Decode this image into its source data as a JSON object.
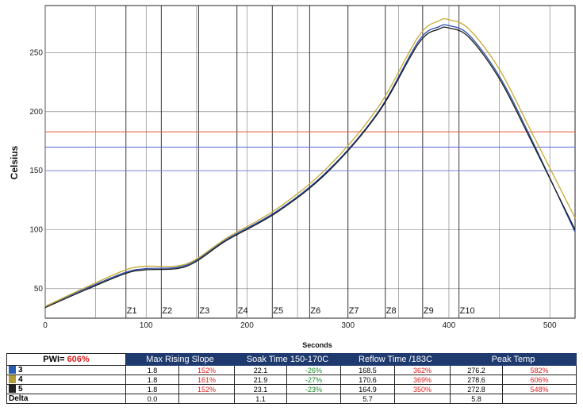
{
  "chart_data": {
    "type": "line",
    "xlabel": "Seconds",
    "ylabel": "Celsius",
    "xlim": [
      0,
      525
    ],
    "ylim": [
      25,
      290
    ],
    "xticks": [
      0,
      100,
      200,
      300,
      400,
      500
    ],
    "yticks": [
      50,
      100,
      150,
      200,
      250
    ],
    "grid": true,
    "zones": [
      {
        "label": "Z1",
        "x": 80
      },
      {
        "label": "Z2",
        "x": 115
      },
      {
        "label": "Z3",
        "x": 152
      },
      {
        "label": "Z4",
        "x": 190
      },
      {
        "label": "Z5",
        "x": 225
      },
      {
        "label": "Z6",
        "x": 262
      },
      {
        "label": "Z7",
        "x": 300
      },
      {
        "label": "Z8",
        "x": 337
      },
      {
        "label": "Z9",
        "x": 374
      },
      {
        "label": "Z10",
        "x": 410
      }
    ],
    "reference_lines": [
      {
        "y": 183,
        "color": "#e8553a"
      },
      {
        "y": 170,
        "color": "#5a66d6"
      },
      {
        "y": 150,
        "color": "#7a86e0"
      }
    ],
    "series": [
      {
        "name": "3",
        "color": "#2a4fb0",
        "x": [
          0,
          40,
          80,
          100,
          140,
          180,
          230,
          280,
          330,
          370,
          390,
          400,
          420,
          450,
          480,
          525
        ],
        "y": [
          35,
          50,
          64,
          67,
          70,
          92,
          116,
          150,
          200,
          260,
          272,
          273,
          265,
          230,
          180,
          98
        ]
      },
      {
        "name": "4",
        "color": "#c8a830",
        "x": [
          0,
          40,
          80,
          100,
          140,
          180,
          230,
          280,
          330,
          370,
          390,
          400,
          420,
          450,
          480,
          525
        ],
        "y": [
          35,
          51,
          66,
          69,
          71,
          93,
          118,
          153,
          204,
          264,
          277,
          278,
          270,
          236,
          186,
          110
        ]
      },
      {
        "name": "5",
        "color": "#1a1a1a",
        "x": [
          0,
          40,
          80,
          100,
          140,
          180,
          230,
          280,
          330,
          370,
          390,
          400,
          420,
          450,
          480,
          525
        ],
        "y": [
          34,
          49,
          63,
          66,
          69,
          91,
          115,
          149,
          199,
          258,
          270,
          271,
          263,
          228,
          178,
          100
        ]
      }
    ]
  },
  "table": {
    "pwi_label": "PWI=",
    "pwi_value": "606%",
    "headers": [
      "Max Rising Slope",
      "Soak Time 150-170C",
      "Reflow Time /183C",
      "Peak Temp"
    ],
    "rows": [
      {
        "name": "3",
        "swatch": "#2a5db0",
        "cells": [
          "1.8",
          "152%",
          "22.1",
          "-26%",
          "168.5",
          "362%",
          "276.2",
          "582%"
        ]
      },
      {
        "name": "4",
        "swatch": "#b39c3a",
        "cells": [
          "1.8",
          "161%",
          "21.9",
          "-27%",
          "170.6",
          "369%",
          "278.6",
          "606%"
        ]
      },
      {
        "name": "5",
        "swatch": "#222222",
        "cells": [
          "1.8",
          "152%",
          "23.1",
          "-23%",
          "164.9",
          "350%",
          "272.8",
          "548%"
        ]
      },
      {
        "name": "Delta",
        "swatch": "",
        "cells": [
          "0.0",
          "",
          "1.1",
          "",
          "5.7",
          "",
          "5.8",
          ""
        ]
      }
    ]
  }
}
